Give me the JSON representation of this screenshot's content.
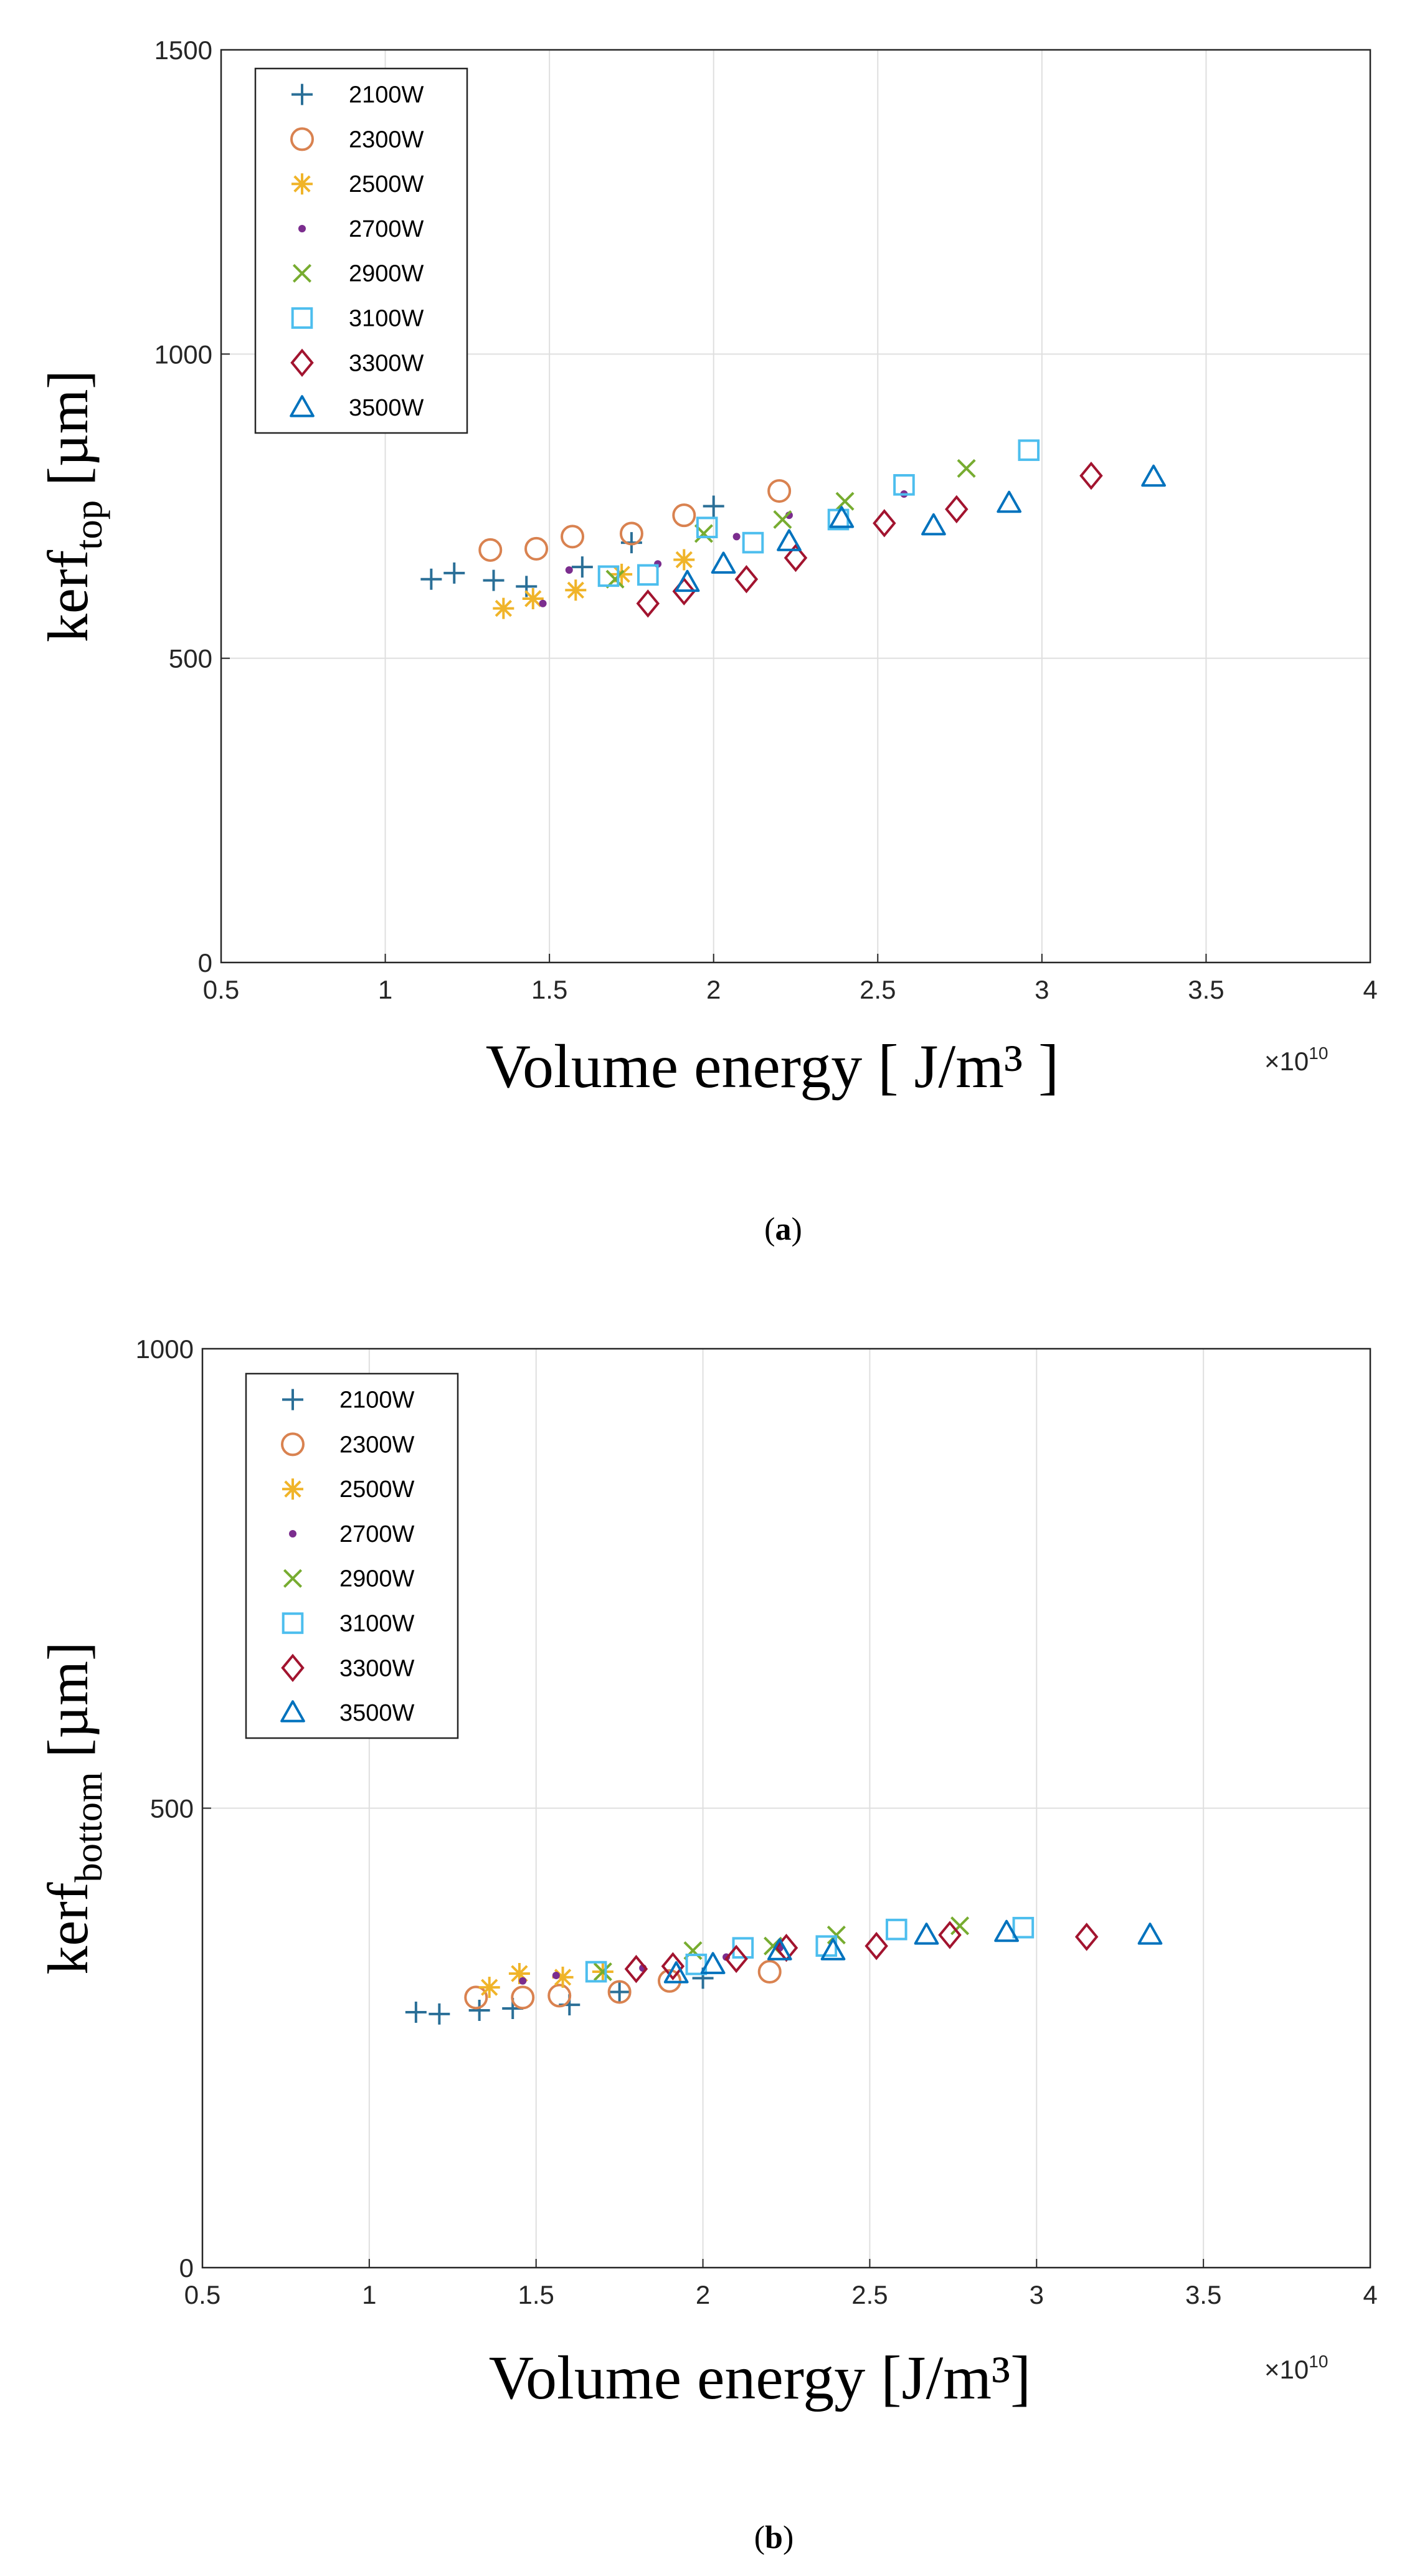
{
  "chart_data": [
    {
      "type": "scatter",
      "panel": "a",
      "caption_open": "(",
      "caption_letter": "a",
      "caption_close": ")",
      "ylabel_main": "kerf",
      "ylabel_sub": "top",
      "ylabel_unit": " [µm]",
      "xlabel": "Volume energy [ J/m³ ]",
      "x_multiplier": "×10",
      "x_multiplier_exp": "10",
      "xlim": [
        0.5,
        4
      ],
      "ylim": [
        0,
        1500
      ],
      "xticks": [
        "0.5",
        "1",
        "1.5",
        "2",
        "2.5",
        "3",
        "3.5",
        "4"
      ],
      "yticks": [
        "0",
        "500",
        "1000",
        "1500"
      ],
      "grid": true,
      "legend_position": "top-left",
      "series": [
        {
          "name": "2100W",
          "marker": "plus",
          "color": "#2a6f97",
          "points": [
            [
              1.14,
              630
            ],
            [
              1.21,
              640
            ],
            [
              1.33,
              628
            ],
            [
              1.43,
              618
            ],
            [
              1.6,
              650
            ],
            [
              1.75,
              690
            ],
            [
              2.0,
              750
            ]
          ]
        },
        {
          "name": "2300W",
          "marker": "circle",
          "color": "#d98250",
          "points": [
            [
              1.32,
              678
            ],
            [
              1.46,
              680
            ],
            [
              1.57,
              700
            ],
            [
              1.75,
              705
            ],
            [
              1.91,
              735
            ],
            [
              2.2,
              775
            ]
          ]
        },
        {
          "name": "2500W",
          "marker": "asterisk",
          "color": "#f0b429",
          "points": [
            [
              1.36,
              582
            ],
            [
              1.45,
              598
            ],
            [
              1.58,
              612
            ],
            [
              1.72,
              638
            ],
            [
              1.91,
              662
            ]
          ]
        },
        {
          "name": "2700W",
          "marker": "dot",
          "color": "#7b2d8e",
          "points": [
            [
              1.48,
              590
            ],
            [
              1.56,
              645
            ],
            [
              1.83,
              655
            ],
            [
              2.07,
              700
            ],
            [
              2.23,
              735
            ],
            [
              2.58,
              770
            ]
          ]
        },
        {
          "name": "2900W",
          "marker": "x",
          "color": "#77ac30",
          "points": [
            [
              1.7,
              630
            ],
            [
              1.97,
              705
            ],
            [
              2.21,
              728
            ],
            [
              2.4,
              758
            ],
            [
              2.77,
              812
            ]
          ]
        },
        {
          "name": "3100W",
          "marker": "square",
          "color": "#4dbeee",
          "points": [
            [
              1.68,
              635
            ],
            [
              1.8,
              637
            ],
            [
              1.98,
              715
            ],
            [
              2.12,
              690
            ],
            [
              2.38,
              728
            ],
            [
              2.58,
              785
            ],
            [
              2.96,
              842
            ]
          ]
        },
        {
          "name": "3300W",
          "marker": "diamond",
          "color": "#a2142f",
          "points": [
            [
              1.8,
              590
            ],
            [
              1.91,
              610
            ],
            [
              2.1,
              630
            ],
            [
              2.25,
              665
            ],
            [
              2.52,
              722
            ],
            [
              2.74,
              745
            ],
            [
              3.15,
              800
            ]
          ]
        },
        {
          "name": "3500W",
          "marker": "triangle",
          "color": "#0072bd",
          "points": [
            [
              1.92,
              625
            ],
            [
              2.03,
              655
            ],
            [
              2.23,
              692
            ],
            [
              2.39,
              730
            ],
            [
              2.67,
              718
            ],
            [
              2.9,
              755
            ],
            [
              3.34,
              798
            ]
          ]
        }
      ]
    },
    {
      "type": "scatter",
      "panel": "b",
      "caption_open": "(",
      "caption_letter": "b",
      "caption_close": ")",
      "ylabel_main": "kerf",
      "ylabel_sub": "bottom",
      "ylabel_unit": " [µm]",
      "xlabel": "Volume energy [J/m³]",
      "x_multiplier": "×10",
      "x_multiplier_exp": "10",
      "xlim": [
        0.5,
        4
      ],
      "ylim": [
        0,
        1000
      ],
      "xticks": [
        "0.5",
        "1",
        "1.5",
        "2",
        "2.5",
        "3",
        "3.5",
        "4"
      ],
      "yticks": [
        "0",
        "500",
        "1000"
      ],
      "grid": true,
      "legend_position": "top-left",
      "series": [
        {
          "name": "2100W",
          "marker": "plus",
          "color": "#2a6f97",
          "points": [
            [
              1.14,
              278
            ],
            [
              1.21,
              276
            ],
            [
              1.33,
              280
            ],
            [
              1.43,
              282
            ],
            [
              1.6,
              286
            ],
            [
              1.75,
              300
            ],
            [
              2.0,
              315
            ]
          ]
        },
        {
          "name": "2300W",
          "marker": "circle",
          "color": "#d98250",
          "points": [
            [
              1.32,
              294
            ],
            [
              1.46,
              294
            ],
            [
              1.57,
              296
            ],
            [
              1.75,
              300
            ],
            [
              1.9,
              312
            ],
            [
              2.2,
              322
            ]
          ]
        },
        {
          "name": "2500W",
          "marker": "asterisk",
          "color": "#f0b429",
          "points": [
            [
              1.36,
              305
            ],
            [
              1.45,
              320
            ],
            [
              1.58,
              316
            ],
            [
              1.7,
              322
            ]
          ]
        },
        {
          "name": "2700W",
          "marker": "dot",
          "color": "#7b2d8e",
          "points": [
            [
              1.46,
              312
            ],
            [
              1.56,
              318
            ],
            [
              1.82,
              326
            ],
            [
              2.07,
              338
            ],
            [
              2.23,
              348
            ]
          ]
        },
        {
          "name": "2900W",
          "marker": "x",
          "color": "#77ac30",
          "points": [
            [
              1.7,
              322
            ],
            [
              1.97,
              345
            ],
            [
              2.21,
              350
            ],
            [
              2.4,
              362
            ],
            [
              2.77,
              372
            ]
          ]
        },
        {
          "name": "3100W",
          "marker": "square",
          "color": "#4dbeee",
          "points": [
            [
              1.68,
              322
            ],
            [
              1.98,
              330
            ],
            [
              2.12,
              348
            ],
            [
              2.37,
              350
            ],
            [
              2.58,
              368
            ],
            [
              2.96,
              370
            ]
          ]
        },
        {
          "name": "3300W",
          "marker": "diamond",
          "color": "#a2142f",
          "points": [
            [
              1.8,
              325
            ],
            [
              1.91,
              328
            ],
            [
              2.1,
              336
            ],
            [
              2.25,
              348
            ],
            [
              2.52,
              350
            ],
            [
              2.74,
              362
            ],
            [
              3.15,
              360
            ]
          ]
        },
        {
          "name": "3500W",
          "marker": "triangle",
          "color": "#0072bd",
          "points": [
            [
              1.92,
              320
            ],
            [
              2.03,
              330
            ],
            [
              2.23,
              345
            ],
            [
              2.39,
              345
            ],
            [
              2.67,
              362
            ],
            [
              2.91,
              365
            ],
            [
              3.34,
              362
            ]
          ]
        }
      ]
    }
  ]
}
